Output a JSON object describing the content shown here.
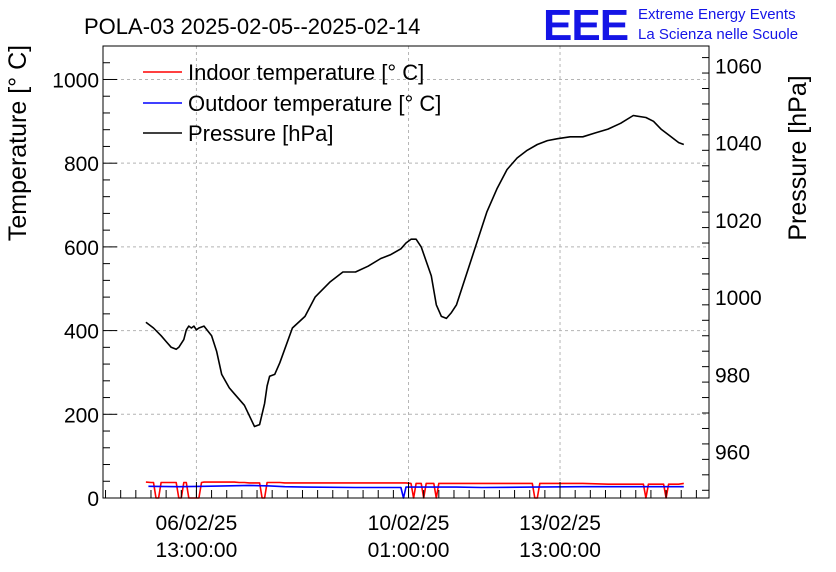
{
  "chart_data": {
    "type": "line",
    "title": "POLA-03 2025-02-05--2025-02-14",
    "logo": {
      "mark": "EEE",
      "line1": "Extreme Energy Events",
      "line2": "La Scienza nelle Scuole"
    },
    "ylabel_left": "Temperature [° C]",
    "ylabel_right": "Pressure [hPa]",
    "ylim_left": [
      0,
      1080
    ],
    "ylim_right": [
      948,
      1065
    ],
    "yticks_left": [
      "0",
      "200",
      "400",
      "600",
      "800",
      "1000"
    ],
    "yticks_right": [
      "960",
      "980",
      "1000",
      "1020",
      "1040",
      "1060"
    ],
    "xlim_hours": [
      0,
      240
    ],
    "x_unit": "hours since 2025-02-05 00:00:00",
    "xticks": [
      {
        "hours": 37,
        "line1": "06/02/25",
        "line2": "13:00:00"
      },
      {
        "hours": 121,
        "line1": "10/02/25",
        "line2": "01:00:00"
      },
      {
        "hours": 181,
        "line1": "13/02/25",
        "line2": "13:00:00"
      }
    ],
    "grid": true,
    "legend_position": "top-left",
    "series": [
      {
        "name": "Indoor temperature [° C]",
        "axis": "left",
        "color": "#ff0000",
        "x": [
          17,
          19,
          20,
          21,
          22,
          23,
          29,
          30,
          31,
          32,
          33,
          34,
          38,
          39,
          40,
          42,
          44,
          46,
          48,
          50,
          52,
          54,
          56,
          58,
          62,
          63,
          64,
          65,
          66,
          67,
          70,
          72,
          80,
          100,
          120,
          122,
          123,
          124,
          125,
          126,
          127,
          128,
          130,
          131,
          132,
          133,
          150,
          165,
          170,
          171,
          172,
          173,
          176,
          180,
          190,
          200,
          205,
          210,
          214,
          215,
          216,
          217,
          220,
          222,
          223,
          224,
          228,
          230
        ],
        "values": [
          38,
          37,
          37,
          0,
          0,
          37,
          37,
          0,
          0,
          37,
          37,
          0,
          0,
          37,
          38,
          38,
          38,
          38,
          38,
          38,
          38,
          37,
          37,
          36,
          36,
          0,
          0,
          37,
          37,
          37,
          37,
          36,
          36,
          36,
          36,
          35,
          0,
          35,
          35,
          35,
          0,
          35,
          35,
          35,
          0,
          35,
          35,
          35,
          35,
          0,
          0,
          35,
          35,
          35,
          35,
          33,
          33,
          33,
          33,
          0,
          33,
          33,
          33,
          33,
          0,
          33,
          33,
          35
        ]
      },
      {
        "name": "Outdoor temperature [° C]",
        "axis": "left",
        "color": "#0000ff",
        "x": [
          18,
          30,
          40,
          48,
          58,
          66,
          72,
          80,
          100,
          118,
          119,
          120,
          140,
          150,
          170,
          190,
          200,
          230
        ],
        "values": [
          28,
          27,
          28,
          29,
          30,
          29,
          27,
          26,
          25,
          25,
          0,
          26,
          26,
          25,
          26,
          27,
          27,
          27
        ]
      },
      {
        "name": "Pressure [hPa]",
        "axis": "right",
        "color": "#000000",
        "x": [
          17,
          20,
          23,
          25,
          27,
          29,
          30,
          32,
          33,
          34,
          35,
          36,
          37,
          38,
          40,
          43,
          45,
          47,
          50,
          52,
          56,
          60,
          62,
          64,
          65,
          66,
          68,
          70,
          75,
          80,
          84,
          90,
          95,
          100,
          105,
          110,
          114,
          118,
          120,
          122,
          124,
          126,
          130,
          132,
          134,
          136,
          138,
          140,
          144,
          148,
          152,
          156,
          160,
          164,
          168,
          172,
          176,
          180,
          185,
          190,
          195,
          200,
          205,
          210,
          215,
          218,
          221,
          224,
          228,
          230
        ],
        "values": [
          993.5,
          992,
          990,
          988.5,
          987,
          986.5,
          987,
          989,
          991.5,
          992.5,
          992,
          992.5,
          991.5,
          992,
          992.5,
          990,
          986,
          980,
          976.5,
          975,
          972,
          966.5,
          967,
          972.5,
          977,
          979.5,
          980,
          983,
          992,
          995,
          1000,
          1004,
          1006.5,
          1006.5,
          1008,
          1010,
          1011,
          1012.5,
          1014,
          1015,
          1015,
          1013,
          1005.5,
          998,
          995,
          994.5,
          996,
          998,
          1006,
          1014,
          1022,
          1028,
          1033,
          1036,
          1038,
          1039.5,
          1040.5,
          1041,
          1041.5,
          1041.5,
          1042.5,
          1043.5,
          1045,
          1047,
          1046.5,
          1045.5,
          1043.5,
          1042,
          1040,
          1039.5
        ]
      }
    ]
  }
}
